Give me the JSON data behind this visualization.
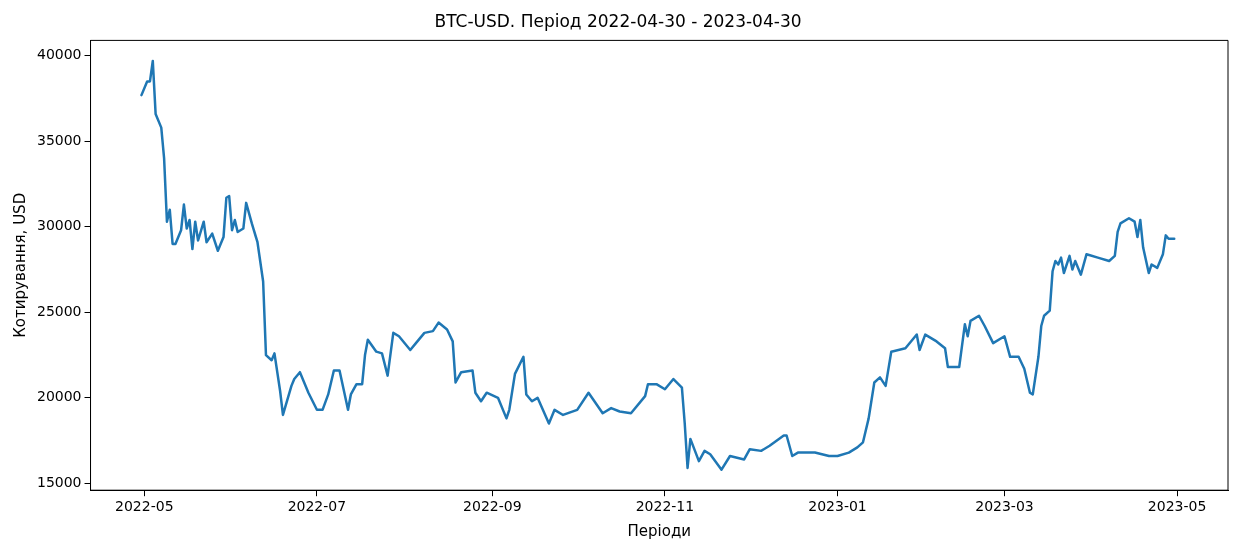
{
  "chart_data": {
    "type": "line",
    "title": "BTC-USD. Період 2022-04-30 - 2023-04-30",
    "xlabel": "Періоди",
    "ylabel": "Котирування, USD",
    "x": [
      "2022-04-30",
      "2022-05-02",
      "2022-05-03",
      "2022-05-04",
      "2022-05-05",
      "2022-05-07",
      "2022-05-08",
      "2022-05-09",
      "2022-05-10",
      "2022-05-11",
      "2022-05-12",
      "2022-05-14",
      "2022-05-15",
      "2022-05-16",
      "2022-05-17",
      "2022-05-18",
      "2022-05-19",
      "2022-05-20",
      "2022-05-22",
      "2022-05-23",
      "2022-05-25",
      "2022-05-27",
      "2022-05-29",
      "2022-05-30",
      "2022-05-31",
      "2022-06-01",
      "2022-06-02",
      "2022-06-03",
      "2022-06-05",
      "2022-06-06",
      "2022-06-08",
      "2022-06-10",
      "2022-06-12",
      "2022-06-13",
      "2022-06-15",
      "2022-06-16",
      "2022-06-18",
      "2022-06-19",
      "2022-06-22",
      "2022-06-23",
      "2022-06-25",
      "2022-06-28",
      "2022-07-01",
      "2022-07-03",
      "2022-07-05",
      "2022-07-07",
      "2022-07-09",
      "2022-07-12",
      "2022-07-13",
      "2022-07-15",
      "2022-07-17",
      "2022-07-18",
      "2022-07-19",
      "2022-07-22",
      "2022-07-24",
      "2022-07-26",
      "2022-07-28",
      "2022-07-30",
      "2022-08-03",
      "2022-08-05",
      "2022-08-08",
      "2022-08-11",
      "2022-08-13",
      "2022-08-16",
      "2022-08-18",
      "2022-08-19",
      "2022-08-21",
      "2022-08-25",
      "2022-08-26",
      "2022-08-28",
      "2022-08-30",
      "2022-09-03",
      "2022-09-06",
      "2022-09-07",
      "2022-09-09",
      "2022-09-12",
      "2022-09-13",
      "2022-09-15",
      "2022-09-17",
      "2022-09-21",
      "2022-09-23",
      "2022-09-26",
      "2022-10-01",
      "2022-10-05",
      "2022-10-10",
      "2022-10-13",
      "2022-10-16",
      "2022-10-20",
      "2022-10-25",
      "2022-10-26",
      "2022-10-29",
      "2022-11-01",
      "2022-11-04",
      "2022-11-07",
      "2022-11-08",
      "2022-11-09",
      "2022-11-10",
      "2022-11-13",
      "2022-11-15",
      "2022-11-17",
      "2022-11-21",
      "2022-11-24",
      "2022-11-29",
      "2022-12-01",
      "2022-12-05",
      "2022-12-08",
      "2022-12-13",
      "2022-12-14",
      "2022-12-16",
      "2022-12-18",
      "2022-12-24",
      "2022-12-29",
      "2023-01-01",
      "2023-01-05",
      "2023-01-08",
      "2023-01-10",
      "2023-01-12",
      "2023-01-14",
      "2023-01-16",
      "2023-01-18",
      "2023-01-20",
      "2023-01-25",
      "2023-01-29",
      "2023-01-30",
      "2023-02-01",
      "2023-02-05",
      "2023-02-08",
      "2023-02-09",
      "2023-02-13",
      "2023-02-15",
      "2023-02-16",
      "2023-02-17",
      "2023-02-20",
      "2023-02-22",
      "2023-02-25",
      "2023-03-01",
      "2023-03-03",
      "2023-03-06",
      "2023-03-08",
      "2023-03-10",
      "2023-03-11",
      "2023-03-13",
      "2023-03-14",
      "2023-03-15",
      "2023-03-17",
      "2023-03-18",
      "2023-03-19",
      "2023-03-20",
      "2023-03-21",
      "2023-03-22",
      "2023-03-24",
      "2023-03-25",
      "2023-03-26",
      "2023-03-28",
      "2023-03-30",
      "2023-04-03",
      "2023-04-07",
      "2023-04-09",
      "2023-04-10",
      "2023-04-11",
      "2023-04-14",
      "2023-04-16",
      "2023-04-17",
      "2023-04-18",
      "2023-04-19",
      "2023-04-21",
      "2023-04-22",
      "2023-04-24",
      "2023-04-26",
      "2023-04-27",
      "2023-04-28",
      "2023-04-30"
    ],
    "series": [
      {
        "color": "#1f77b4",
        "values": [
          37700,
          38500,
          38500,
          39700,
          36600,
          35800,
          34000,
          30300,
          31000,
          29000,
          29000,
          29800,
          31300,
          29900,
          30400,
          28700,
          30300,
          29200,
          30300,
          29100,
          29600,
          28600,
          29400,
          31700,
          31800,
          29800,
          30400,
          29700,
          29900,
          31400,
          30200,
          29100,
          26800,
          22500,
          22200,
          22600,
          20400,
          19000,
          20700,
          21100,
          21500,
          20300,
          19300,
          19300,
          20200,
          21600,
          21600,
          19300,
          20200,
          20800,
          20800,
          22500,
          23400,
          22700,
          22600,
          21300,
          23800,
          23600,
          22800,
          23200,
          23800,
          23900,
          24400,
          24000,
          23300,
          20900,
          21500,
          21600,
          20300,
          19800,
          20300,
          20000,
          18800,
          19300,
          21400,
          22400,
          20200,
          19800,
          20000,
          18500,
          19300,
          19000,
          19300,
          20300,
          19100,
          19400,
          19200,
          19100,
          20100,
          20800,
          20800,
          20500,
          21100,
          20600,
          18500,
          15900,
          17600,
          16300,
          16900,
          16700,
          15800,
          16600,
          16400,
          17000,
          16900,
          17200,
          17800,
          17800,
          16600,
          16800,
          16800,
          16600,
          16600,
          16800,
          17100,
          17400,
          18800,
          20900,
          21200,
          20700,
          22700,
          22900,
          23700,
          22800,
          23700,
          23300,
          22900,
          21800,
          21800,
          24300,
          23600,
          24500,
          24800,
          24200,
          23200,
          23600,
          22400,
          22400,
          21700,
          20300,
          20200,
          22400,
          24200,
          24800,
          25100,
          27400,
          28000,
          27800,
          28200,
          27300,
          28300,
          27500,
          28000,
          27200,
          28400,
          28200,
          28000,
          28300,
          29700,
          30200,
          30500,
          30300,
          29400,
          30400,
          28800,
          27300,
          27800,
          27600,
          28400,
          29500,
          29300,
          29300
        ]
      }
    ],
    "xlim": [
      "2022-04-12",
      "2023-05-19"
    ],
    "xticks": [
      {
        "value": "2022-05-01",
        "label": "2022-05"
      },
      {
        "value": "2022-07-01",
        "label": "2022-07"
      },
      {
        "value": "2022-09-01",
        "label": "2022-09"
      },
      {
        "value": "2022-11-01",
        "label": "2022-11"
      },
      {
        "value": "2023-01-01",
        "label": "2023-01"
      },
      {
        "value": "2023-03-01",
        "label": "2023-03"
      },
      {
        "value": "2023-05-01",
        "label": "2023-05"
      }
    ],
    "ylim": [
      14600,
      40900
    ],
    "yticks": [
      15000,
      20000,
      25000,
      30000,
      35000,
      40000
    ],
    "grid": false,
    "legend": false,
    "marker": "none",
    "line_style": "solid"
  }
}
